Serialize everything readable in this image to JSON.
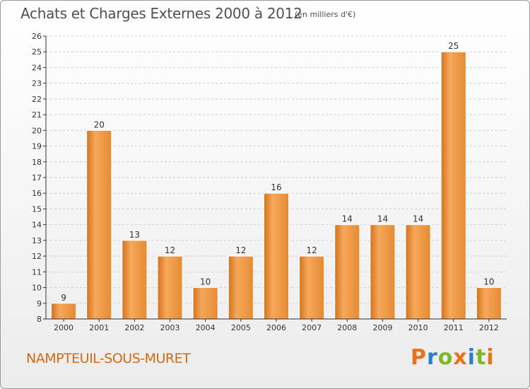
{
  "header": {
    "title": "Achats et Charges Externes 2000 à 2012",
    "unit": "(en milliers d'€)"
  },
  "footer": {
    "place": "NAMPTEUIL-SOUS-MURET",
    "logo": "Proxiti",
    "logo_colors": [
      "#e8731a",
      "#2e7fc2",
      "#7cb928",
      "#e8731a",
      "#2e7fc2",
      "#7cb928",
      "#e8731a"
    ]
  },
  "colors": {
    "bar_light": "#f6a85a",
    "bar_dark": "#d2731e",
    "bar_stroke": "#ffffff",
    "axis": "#333333",
    "grid": "#cfcfcf",
    "tick_text": "#333333"
  },
  "chart_data": {
    "type": "bar",
    "title": "Achats et Charges Externes 2000 à 2012",
    "subtitle": "(en milliers d'€)",
    "xlabel": "",
    "ylabel": "",
    "categories": [
      "2000",
      "2001",
      "2002",
      "2003",
      "2004",
      "2005",
      "2006",
      "2007",
      "2008",
      "2009",
      "2010",
      "2011",
      "2012"
    ],
    "values": [
      9,
      20,
      13,
      12,
      10,
      12,
      16,
      12,
      14,
      14,
      14,
      25,
      10
    ],
    "ylim": [
      8,
      26
    ],
    "yticks": [
      8,
      9,
      10,
      11,
      12,
      13,
      14,
      15,
      16,
      17,
      18,
      19,
      20,
      21,
      22,
      23,
      24,
      25,
      26
    ],
    "grid": "horizontal-dashed",
    "legend": "none"
  }
}
